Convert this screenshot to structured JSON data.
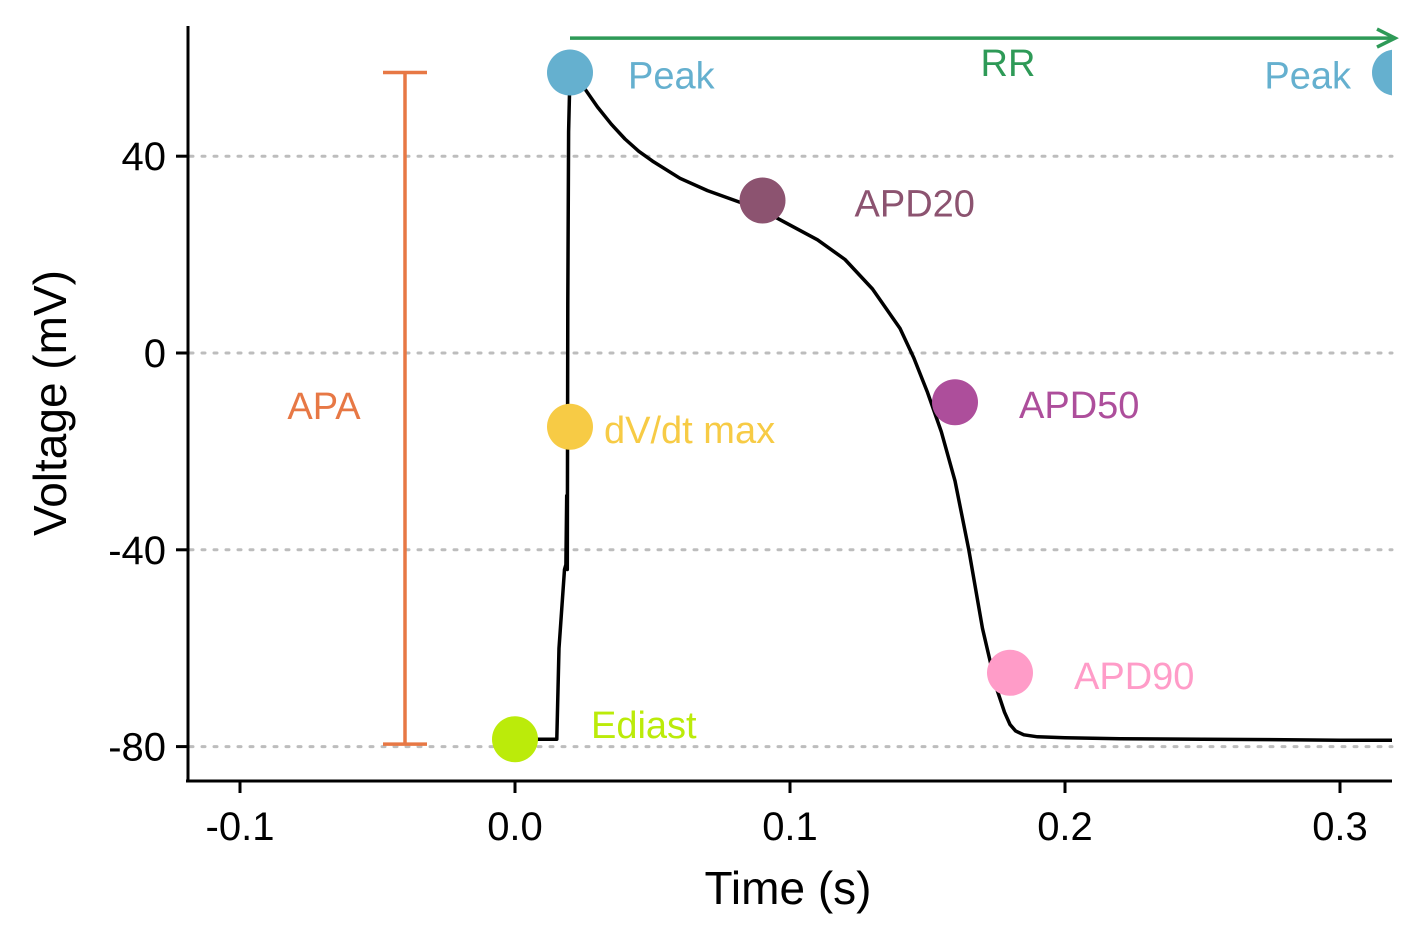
{
  "chart_data": {
    "type": "line",
    "title": "",
    "xlabel": "Time (s)",
    "ylabel": "Voltage (mV)",
    "xlim": [
      -0.12,
      0.32
    ],
    "ylim": [
      -87,
      68
    ],
    "x_ticks": [
      -0.1,
      0.0,
      0.1,
      0.2,
      0.3
    ],
    "x_tick_labels": [
      "-0.1",
      "0.0",
      "0.1",
      "0.2",
      "0.3"
    ],
    "y_ticks": [
      -80,
      -40,
      0,
      40
    ],
    "y_tick_labels": [
      "-80",
      "-40",
      "0",
      "40"
    ],
    "grid": "horizontal dotted lines at y ticks",
    "series": [
      {
        "color": "#000000",
        "x": [
          -0.0,
          0.005,
          0.01,
          0.015,
          0.0152,
          0.016,
          0.018,
          0.0185,
          0.0188,
          0.019,
          0.0192,
          0.0195,
          0.02,
          0.022,
          0.025,
          0.03,
          0.035,
          0.04,
          0.045,
          0.05,
          0.06,
          0.07,
          0.08,
          0.09,
          0.1,
          0.11,
          0.12,
          0.13,
          0.14,
          0.145,
          0.15,
          0.155,
          0.16,
          0.165,
          0.17,
          0.175,
          0.178,
          0.18,
          0.182,
          0.185,
          0.19,
          0.2,
          0.22,
          0.25,
          0.28,
          0.3,
          0.32
        ],
        "y": [
          -78.5,
          -78.5,
          -78.5,
          -78.5,
          -78.5,
          -60.0,
          -44.0,
          -43.0,
          -29.0,
          -44.0,
          10.0,
          45.0,
          57.0,
          56.5,
          54.0,
          50.0,
          46.5,
          43.5,
          41.0,
          39.0,
          35.5,
          33.0,
          31.0,
          29.0,
          26.0,
          23.0,
          19.0,
          13.0,
          5.0,
          -1.0,
          -8.0,
          -16.0,
          -26.0,
          -40.0,
          -56.0,
          -68.0,
          -73.0,
          -75.5,
          -76.8,
          -77.6,
          -78.0,
          -78.2,
          -78.4,
          -78.5,
          -78.6,
          -78.7,
          -78.7
        ]
      }
    ],
    "markers": [
      {
        "label": "Ediast",
        "x": 0.0,
        "y": -78.5,
        "color": "#BBEB0A"
      },
      {
        "label": "dV/dt max",
        "x": 0.02,
        "y": -15.0,
        "color": "#F7CB45"
      },
      {
        "label": "Peak",
        "x": 0.02,
        "y": 57.0,
        "color": "#65B0CF"
      },
      {
        "label": "APD20",
        "x": 0.09,
        "y": 31.0,
        "color": "#8C5370"
      },
      {
        "label": "APD50",
        "x": 0.16,
        "y": -10.0,
        "color": "#AD4E9B"
      },
      {
        "label": "APD90",
        "x": 0.18,
        "y": -65.0,
        "color": "#FF9CC8"
      },
      {
        "label": "Peak",
        "x": 0.32,
        "y": 57.0,
        "color": "#65B0CF"
      }
    ],
    "apa": {
      "label": "APA",
      "x": -0.04,
      "y_bottom": -79.5,
      "y_top": 57.0,
      "color": "#E77845"
    },
    "rr": {
      "label": "RR",
      "x_start": 0.02,
      "x_end": 0.32,
      "y": 64.0,
      "color": "#2E9A57"
    }
  }
}
